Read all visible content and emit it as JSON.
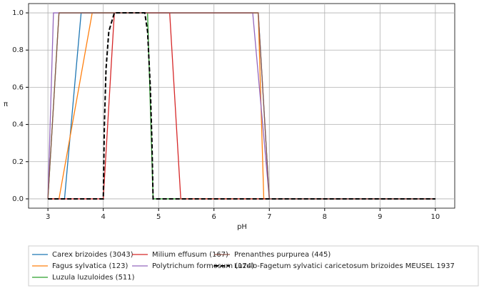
{
  "chart_data": {
    "type": "line",
    "xlabel": "pH",
    "ylabel": "π",
    "xlim": [
      2.65,
      10.35
    ],
    "ylim": [
      -0.05,
      1.05
    ],
    "xticks": [
      3,
      4,
      5,
      6,
      7,
      8,
      9,
      10
    ],
    "yticks": [
      {
        "value": 0,
        "label": "0.0"
      },
      {
        "value": 0.2,
        "label": "0.2"
      },
      {
        "value": 0.4,
        "label": "0.4"
      },
      {
        "value": 0.6,
        "label": "0.6"
      },
      {
        "value": 0.8,
        "label": "0.8"
      },
      {
        "value": 1,
        "label": "1.0"
      }
    ],
    "grid": true,
    "series": [
      {
        "name": "Carex brizoides (3043)",
        "color": "#1f77b4",
        "x": [
          3,
          3.3,
          3.6,
          6.8,
          7.0,
          10
        ],
        "values": [
          0,
          0,
          1,
          1,
          0,
          0
        ]
      },
      {
        "name": "Fagus sylvatica (123)",
        "color": "#ff7f0e",
        "x": [
          3,
          3.2,
          3.8,
          6.8,
          6.9,
          10
        ],
        "values": [
          0,
          0,
          1,
          1,
          0,
          0
        ]
      },
      {
        "name": "Luzula luzuloides (511)",
        "color": "#2ca02c",
        "x": [
          3,
          3.2,
          4.8,
          4.9,
          10
        ],
        "values": [
          0,
          1,
          1,
          0,
          0
        ]
      },
      {
        "name": "Milium effusum (167)",
        "color": "#d62728",
        "x": [
          3,
          4.0,
          4.2,
          5.2,
          5.4,
          10
        ],
        "values": [
          0,
          0,
          1,
          1,
          0,
          0
        ]
      },
      {
        "name": "Polytrichum formosum (174)",
        "color": "#9467bd",
        "x": [
          3,
          3.1,
          6.7,
          7.0,
          10
        ],
        "values": [
          0,
          1,
          1,
          0,
          0
        ]
      },
      {
        "name": "Prenanthes purpurea (445)",
        "color": "#8c564b",
        "x": [
          3,
          3.2,
          6.8,
          7.0,
          10
        ],
        "values": [
          0,
          1,
          1,
          0,
          0
        ]
      },
      {
        "name": "Luzulo-Fagetum sylvatici caricetosum brizoides MEUSEL 1937",
        "color": "#000000",
        "dashed": true,
        "x": [
          3,
          4.0,
          4.02,
          4.05,
          4.1,
          4.2,
          4.75,
          4.8,
          4.85,
          4.88,
          4.9,
          10
        ],
        "values": [
          0,
          0,
          0.4,
          0.7,
          0.9,
          1,
          1,
          0.9,
          0.6,
          0.3,
          0,
          0
        ]
      }
    ]
  }
}
